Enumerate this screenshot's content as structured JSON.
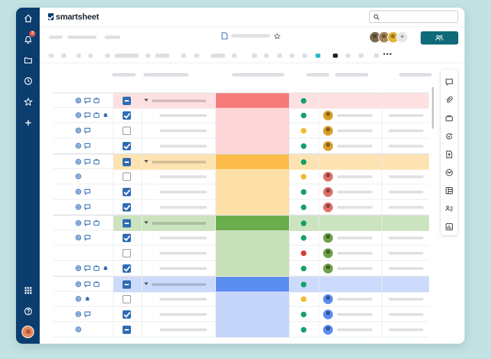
{
  "app": {
    "logo_text": "smartsheet",
    "brand_color": "#0b3d6e",
    "accent": "#0f6b7a"
  },
  "nav": {
    "items": [
      "home-icon",
      "bell-icon",
      "folder-icon",
      "clock-icon",
      "star-icon",
      "plus-icon"
    ],
    "notification_count": "3",
    "bottom": [
      "apps-grid-icon",
      "help-icon"
    ]
  },
  "search": {
    "placeholder": ""
  },
  "sheet": {
    "status_colors": {
      "green": "#14a06a",
      "yellow": "#f3b82c",
      "red": "#d93a35"
    }
  },
  "collaborators": [
    "#7a6b4c",
    "#a8845a",
    "#e1b53a"
  ],
  "groups": [
    {
      "color_strong": "#f47b79",
      "color_light": "#fdd5d6",
      "row_bg": "#fde1e2",
      "rows": 4
    },
    {
      "color_strong": "#fbbc4a",
      "color_light": "#fde0a8",
      "row_bg": "#fee3b2",
      "rows": 4
    },
    {
      "color_strong": "#69ad4d",
      "color_light": "#c8e0b8",
      "row_bg": "#cce3bf",
      "rows": 4
    },
    {
      "color_strong": "#5b8cf0",
      "color_light": "#c5d6fa",
      "row_bg": "#ccdafb",
      "rows": 4
    }
  ],
  "rows": [
    {
      "type": "parent",
      "g": 0,
      "icons": [
        "at",
        "comment",
        "attach"
      ],
      "check": "minus",
      "status": "green",
      "avatar": null
    },
    {
      "type": "child",
      "g": 0,
      "icons": [
        "at",
        "comment",
        "attach",
        "bell"
      ],
      "check": "checked",
      "status": "green",
      "avatar": "#d9a02b"
    },
    {
      "type": "child",
      "g": 0,
      "icons": [
        "at",
        "comment"
      ],
      "check": "empty",
      "status": "yellow",
      "avatar": "#d9a02b"
    },
    {
      "type": "child",
      "g": 0,
      "icons": [
        "at",
        "comment"
      ],
      "check": "checked",
      "status": "green",
      "avatar": "#d9a02b"
    },
    {
      "type": "parent",
      "g": 1,
      "icons": [
        "at",
        "comment",
        "attach"
      ],
      "check": "minus",
      "status": "green",
      "avatar": null
    },
    {
      "type": "child",
      "g": 1,
      "icons": [
        "at"
      ],
      "check": "empty",
      "status": "yellow",
      "avatar": "#e0716b"
    },
    {
      "type": "child",
      "g": 1,
      "icons": [
        "at",
        "comment"
      ],
      "check": "checked",
      "status": "green",
      "avatar": "#e0716b"
    },
    {
      "type": "child",
      "g": 1,
      "icons": [
        "at",
        "comment"
      ],
      "check": "checked",
      "status": "green",
      "avatar": "#e0716b"
    },
    {
      "type": "parent",
      "g": 2,
      "icons": [
        "at",
        "comment",
        "attach"
      ],
      "check": "minus",
      "status": "green",
      "avatar": null
    },
    {
      "type": "child",
      "g": 2,
      "icons": [
        "at",
        "comment"
      ],
      "check": "checked",
      "status": "green",
      "avatar": "#6fa24a"
    },
    {
      "type": "child",
      "g": 2,
      "icons": [],
      "check": "empty",
      "status": "red",
      "avatar": "#6fa24a"
    },
    {
      "type": "child",
      "g": 2,
      "icons": [
        "at",
        "comment",
        "attach",
        "bell"
      ],
      "check": "checked",
      "status": "green",
      "avatar": "#6fa24a"
    },
    {
      "type": "parent",
      "g": 3,
      "icons": [
        "at",
        "comment",
        "attach"
      ],
      "check": "minus",
      "status": "green",
      "avatar": null
    },
    {
      "type": "child",
      "g": 3,
      "icons": [
        "at",
        "bell"
      ],
      "check": "empty",
      "status": "yellow",
      "avatar": "#5b8cf0"
    },
    {
      "type": "child",
      "g": 3,
      "icons": [
        "at",
        "comment"
      ],
      "check": "checked",
      "status": "green",
      "avatar": "#5b8cf0"
    },
    {
      "type": "child",
      "g": 3,
      "icons": [
        "at"
      ],
      "check": "minus",
      "status": "green",
      "avatar": "#5b8cf0"
    }
  ],
  "right_panel": [
    "comment-icon",
    "attachment-icon",
    "proofing-icon",
    "update-requests-icon",
    "publish-icon",
    "activity-log-icon",
    "summary-icon",
    "people-icon",
    "reports-icon"
  ]
}
